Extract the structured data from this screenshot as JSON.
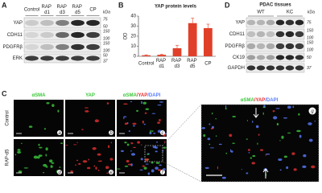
{
  "panel_a": {
    "label": "A",
    "lanes": [
      "Control",
      "RAP d1",
      "RAP d3",
      "RAP d5",
      "CP"
    ],
    "unit": "kDa",
    "rows": [
      {
        "name": "YAP",
        "kda": [
          75,
          50
        ]
      },
      {
        "name": "CDH11",
        "kda": [
          150,
          100
        ]
      },
      {
        "name": "PDGFRβ",
        "kda": [
          150,
          100
        ]
      },
      {
        "name": "ERK",
        "kda": [
          50,
          37
        ]
      }
    ]
  },
  "panel_b": {
    "label": "B",
    "chart_data": {
      "type": "bar",
      "title": "YAP protein levels",
      "y_label": "OD",
      "categories": [
        "Control",
        "RAP d1",
        "RAP d3",
        "RAP d5",
        "CP"
      ],
      "values": [
        1,
        1.5,
        8,
        33,
        28
      ],
      "errors": [
        0.5,
        0.5,
        3,
        5,
        4
      ],
      "color": "#e0402a",
      "ylim": [
        0,
        40
      ],
      "yticks": [
        0,
        10,
        20,
        30,
        40
      ]
    }
  },
  "panel_c": {
    "label": "C",
    "columns": [
      [
        "αSMA"
      ],
      [
        "YAP"
      ],
      [
        "αSMA",
        "/YAP",
        "/DAPI"
      ]
    ],
    "rows": [
      "Control",
      "RAP-d5"
    ],
    "panels": [
      "a",
      "b",
      "c",
      "d",
      "e",
      "f"
    ],
    "zoom": {
      "label": "g",
      "title": [
        "αSMA",
        "/YAP",
        "/DAPI"
      ]
    }
  },
  "panel_d": {
    "label": "D",
    "title": "PDAC tissues",
    "groups": [
      "WT",
      "KC"
    ],
    "unit": "kDa",
    "rows": [
      {
        "name": "YAP",
        "kda": [
          75
        ]
      },
      {
        "name": "CDH11",
        "kda": [
          150,
          100
        ]
      },
      {
        "name": "PDGFRβ",
        "kda": [
          150,
          100
        ]
      },
      {
        "name": "CK19",
        "kda": [
          50
        ]
      },
      {
        "name": "GAPDH",
        "kda": [
          37
        ]
      }
    ]
  }
}
